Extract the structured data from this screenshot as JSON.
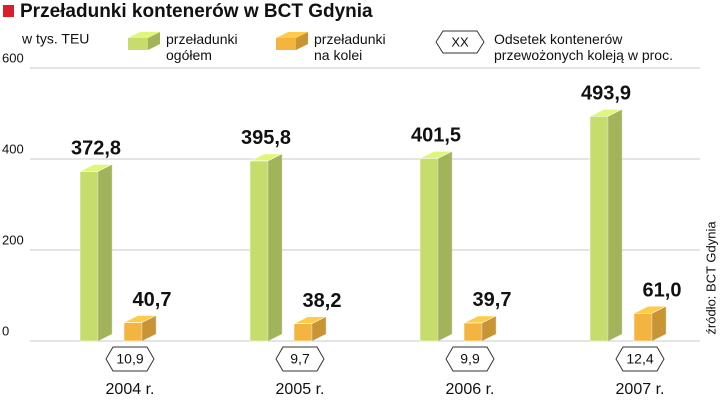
{
  "chart_data": {
    "type": "bar3d",
    "title": "Przeładunki kontenerów w BCT Gdynia",
    "unit_label": "w tys. TEU",
    "source": "źródło: BCT Gdynia",
    "categories": [
      "2004 r.",
      "2005 r.",
      "2006 r.",
      "2007 r."
    ],
    "series": [
      {
        "name": "przeładunki ogółem",
        "color": "#c6dc6c",
        "values": [
          372.8,
          395.8,
          401.5,
          493.9
        ],
        "value_labels": [
          "372,8",
          "395,8",
          "401,5",
          "493,9"
        ]
      },
      {
        "name": "przeładunki na kolei",
        "color": "#f4b540",
        "values": [
          40.7,
          38.2,
          39.7,
          61.0
        ],
        "value_labels": [
          "40,7",
          "38,2",
          "39,7",
          "61,0"
        ]
      }
    ],
    "rail_share": {
      "name": "Odsetek kontenerów przewożonych koleją w proc.",
      "legend_marker": "XX",
      "values": [
        10.9,
        9.7,
        9.9,
        12.4
      ],
      "value_labels": [
        "10,9",
        "9,7",
        "9,9",
        "12,4"
      ]
    },
    "ylim": [
      0,
      600
    ],
    "yticks": [
      0,
      200,
      400,
      600
    ],
    "grid": true,
    "accent_color": "#d8202a"
  }
}
